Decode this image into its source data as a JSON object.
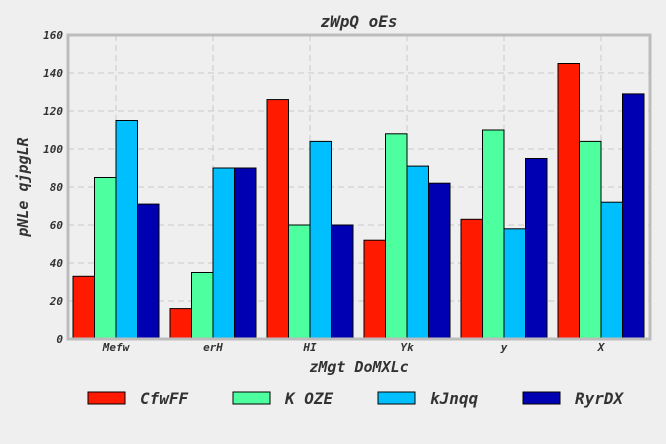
{
  "chart_data": {
    "type": "bar",
    "title": "zWpQ  oEs",
    "xlabel": "zMgt DoMXLc",
    "ylabel": "pNLe qjpgLR",
    "categories": [
      "Mefw",
      "erH",
      "HI",
      "Yk",
      "y",
      "X"
    ],
    "ylim": [
      0,
      160
    ],
    "yticks": [
      0,
      20,
      40,
      60,
      80,
      100,
      120,
      140,
      160
    ],
    "grid": true,
    "legend_position": "bottom",
    "series": [
      {
        "name": "CfwFF",
        "color": "#ff1a00",
        "values": [
          33,
          16,
          126,
          52,
          63,
          145
        ]
      },
      {
        "name": "K OZE",
        "color": "#4dff9e",
        "values": [
          85,
          35,
          60,
          108,
          110,
          104
        ]
      },
      {
        "name": "kJnqq",
        "color": "#00bfff",
        "values": [
          115,
          90,
          104,
          91,
          58,
          72
        ]
      },
      {
        "name": "RyrDX",
        "color": "#0000b3",
        "values": [
          71,
          90,
          60,
          82,
          95,
          129
        ]
      }
    ]
  }
}
